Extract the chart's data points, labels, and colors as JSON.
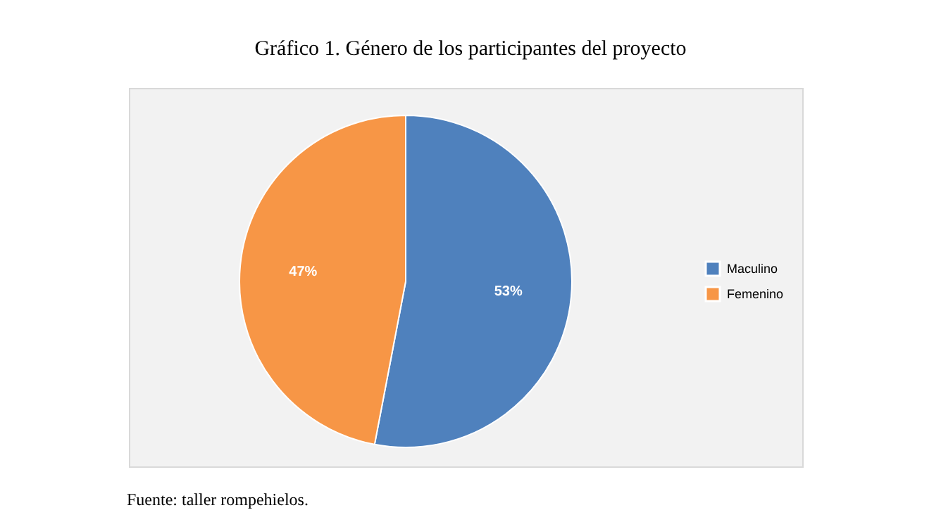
{
  "chart_data": {
    "type": "pie",
    "title": "Gráfico 1. Género de los participantes del proyecto",
    "categories": [
      "Maculino",
      "Femenino"
    ],
    "values": [
      53,
      47
    ],
    "colors": [
      "#4f81bd",
      "#f79646"
    ],
    "value_labels": [
      "53%",
      "47%"
    ],
    "legend": "right",
    "annotations": [
      "Fuente: taller rompehielos."
    ]
  }
}
